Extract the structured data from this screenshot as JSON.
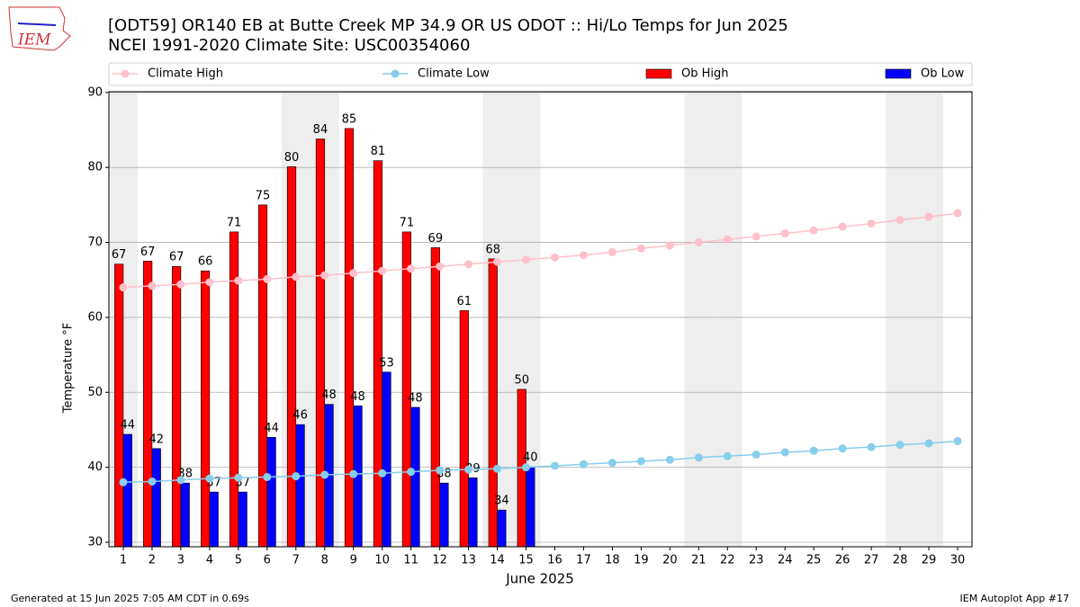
{
  "chart_data": {
    "type": "bar",
    "logo_text": "IEM",
    "title": "[ODT59] OR140 EB at Butte Creek MP 34.9  OR US ODOT :: Hi/Lo Temps for Jun 2025",
    "subtitle": "NCEI 1991-2020 Climate Site: USC00354060",
    "y_label": "Temperature °F",
    "x_label": "June 2025",
    "footer_left": "Generated at 15 Jun 2025 7:05 AM CDT in 0.69s",
    "footer_right": "IEM Autoplot App #17",
    "x": [
      1,
      2,
      3,
      4,
      5,
      6,
      7,
      8,
      9,
      10,
      11,
      12,
      13,
      14,
      15,
      16,
      17,
      18,
      19,
      20,
      21,
      22,
      23,
      24,
      25,
      26,
      27,
      28,
      29,
      30
    ],
    "xlim": [
      0.5,
      30.5
    ],
    "ylim": [
      29.4,
      90.1
    ],
    "yticks": [
      30,
      40,
      50,
      60,
      70,
      80,
      90
    ],
    "grid": true,
    "weekend_days": [
      1,
      7,
      8,
      14,
      15,
      21,
      22,
      28,
      29
    ],
    "series": [
      {
        "name": "Climate High",
        "type": "line",
        "color": "#ffc0cb",
        "values": [
          64.0,
          64.2,
          64.4,
          64.7,
          64.9,
          65.1,
          65.4,
          65.6,
          65.9,
          66.2,
          66.5,
          66.8,
          67.1,
          67.4,
          67.7,
          68.0,
          68.3,
          68.7,
          69.2,
          69.6,
          70.0,
          70.4,
          70.8,
          71.2,
          71.6,
          72.1,
          72.5,
          73.0,
          73.4,
          73.9
        ]
      },
      {
        "name": "Climate Low",
        "type": "line",
        "color": "#87ceeb",
        "values": [
          38.0,
          38.1,
          38.3,
          38.5,
          38.6,
          38.7,
          38.8,
          39.0,
          39.1,
          39.2,
          39.4,
          39.6,
          39.7,
          39.8,
          40.0,
          40.2,
          40.4,
          40.6,
          40.8,
          41.0,
          41.3,
          41.5,
          41.7,
          42.0,
          42.2,
          42.5,
          42.7,
          43.0,
          43.2,
          43.5
        ]
      },
      {
        "name": "Ob High",
        "type": "bar",
        "color": "#ff0000",
        "values": [
          67.1,
          67.5,
          66.8,
          66.2,
          71.4,
          75.0,
          80.1,
          83.8,
          85.2,
          80.9,
          71.4,
          69.3,
          60.9,
          67.8,
          50.4,
          null,
          null,
          null,
          null,
          null,
          null,
          null,
          null,
          null,
          null,
          null,
          null,
          null,
          null,
          null
        ],
        "value_labels": [
          "67",
          "67",
          "67",
          "66",
          "71",
          "75",
          "80",
          "84",
          "85",
          "81",
          "71",
          "69",
          "61",
          "68",
          "50",
          null,
          null,
          null,
          null,
          null,
          null,
          null,
          null,
          null,
          null,
          null,
          null,
          null,
          null,
          null
        ]
      },
      {
        "name": "Ob Low",
        "type": "bar",
        "color": "#0000ff",
        "values": [
          44.4,
          42.5,
          37.9,
          36.7,
          36.7,
          44.0,
          45.7,
          48.4,
          48.2,
          52.7,
          48.0,
          37.9,
          38.6,
          34.3,
          40.1,
          null,
          null,
          null,
          null,
          null,
          null,
          null,
          null,
          null,
          null,
          null,
          null,
          null,
          null,
          null
        ],
        "value_labels": [
          "44",
          "42",
          "38",
          "37",
          "37",
          "44",
          "46",
          "48",
          "48",
          "53",
          "48",
          "38",
          "39",
          "34",
          "40",
          null,
          null,
          null,
          null,
          null,
          null,
          null,
          null,
          null,
          null,
          null,
          null,
          null,
          null,
          null
        ]
      }
    ]
  }
}
